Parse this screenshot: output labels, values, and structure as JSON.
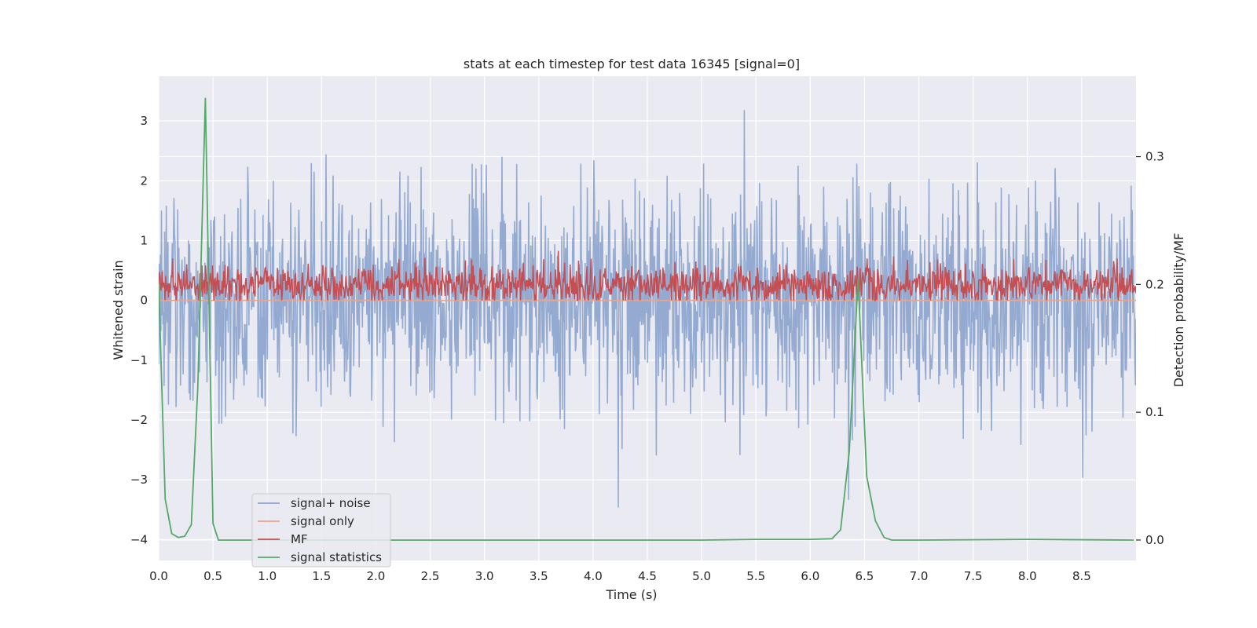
{
  "chart_data": {
    "type": "line",
    "title": "stats at each timestep for test data 16345 [signal=0]",
    "xlabel": "Time (s)",
    "ylabel": "Whitened strain",
    "ylabel_right": "Detection probability/MF",
    "xlim": [
      0.0,
      9.0
    ],
    "ylim": [
      -4.35,
      3.75
    ],
    "ylim_right": [
      -0.016,
      0.363
    ],
    "x_ticks": [
      0.0,
      0.5,
      1.0,
      1.5,
      2.0,
      2.5,
      3.0,
      3.5,
      4.0,
      4.5,
      5.0,
      5.5,
      6.0,
      6.5,
      7.0,
      7.5,
      8.0,
      8.5
    ],
    "x_tick_labels": [
      "0.0",
      "0.5",
      "1.0",
      "1.5",
      "2.0",
      "2.5",
      "3.0",
      "3.5",
      "4.0",
      "4.5",
      "5.0",
      "5.5",
      "6.0",
      "6.5",
      "7.0",
      "7.5",
      "8.0",
      "8.5"
    ],
    "y_ticks": [
      -4,
      -3,
      -2,
      -1,
      0,
      1,
      2,
      3
    ],
    "y_tick_labels": [
      "−4",
      "−3",
      "−2",
      "−1",
      "0",
      "1",
      "2",
      "3"
    ],
    "y_right_ticks": [
      0.0,
      0.1,
      0.2,
      0.3
    ],
    "y_right_tick_labels": [
      "0.0",
      "0.1",
      "0.2",
      "0.3"
    ],
    "grid": true,
    "legend_position": "lower-left",
    "series": [
      {
        "name": "signal+ noise",
        "axis": "left",
        "color": "#8fa6cf",
        "description_kind": "noise",
        "noise_std": 0.9,
        "range": [
          -4.0,
          3.4
        ]
      },
      {
        "name": "signal only",
        "axis": "left",
        "color": "#eaa58d",
        "constant": 0.0
      },
      {
        "name": "MF",
        "axis": "left",
        "color": "#c44e52",
        "description_kind": "noise",
        "baseline": 0.25,
        "range": [
          0.0,
          1.0
        ]
      },
      {
        "name": "signal statistics",
        "axis": "right",
        "color": "#55a868",
        "x": [
          0.0,
          0.06,
          0.12,
          0.18,
          0.24,
          0.3,
          0.36,
          0.43,
          0.5,
          0.55,
          0.62,
          1.0,
          2.0,
          3.0,
          4.0,
          5.0,
          5.5,
          6.0,
          6.2,
          6.28,
          6.36,
          6.44,
          6.52,
          6.6,
          6.68,
          6.75,
          7.0,
          8.0,
          8.98
        ],
        "y": [
          0.2,
          0.032,
          0.005,
          0.002,
          0.003,
          0.012,
          0.12,
          0.346,
          0.013,
          0.0,
          0.0,
          0.0,
          0.0,
          0.0,
          0.0,
          0.0,
          0.0005,
          0.0005,
          0.001,
          0.008,
          0.07,
          0.205,
          0.05,
          0.015,
          0.002,
          0.0,
          0.0,
          0.0005,
          0.0
        ]
      }
    ]
  },
  "legend": {
    "items": [
      {
        "label": "signal+ noise",
        "color": "#8fa6cf"
      },
      {
        "label": "signal only",
        "color": "#eaa58d"
      },
      {
        "label": "MF",
        "color": "#c44e52"
      },
      {
        "label": "signal statistics",
        "color": "#55a868"
      }
    ]
  },
  "colors": {
    "plot_background": "#eaeaf2",
    "grid": "#ffffff",
    "text": "#262626"
  }
}
